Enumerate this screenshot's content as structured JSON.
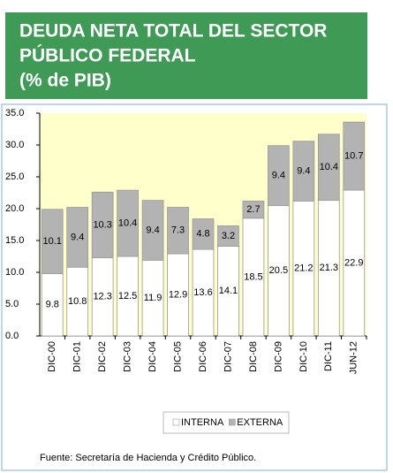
{
  "chart_data": {
    "type": "stacked_bar",
    "title": [
      "DEUDA NETA TOTAL DEL SECTOR",
      "PÚBLICO FEDERAL",
      "(% de PIB)"
    ],
    "categories": [
      "DIC-00",
      "DIC-01",
      "DIC-02",
      "DIC-03",
      "DIC-04",
      "DIC-05",
      "DIC-06",
      "DIC-07",
      "DIC-08",
      "DIC-09",
      "DIC-10",
      "DIC-11",
      "JUN-12"
    ],
    "series": [
      {
        "name": "INTERNA",
        "color": "#ffffff",
        "values": [
          9.8,
          10.8,
          12.3,
          12.5,
          11.9,
          12.9,
          13.6,
          14.1,
          18.5,
          20.5,
          21.2,
          21.3,
          22.9
        ]
      },
      {
        "name": "EXTERNA",
        "color": "#b3b3b3",
        "values": [
          10.1,
          9.4,
          10.3,
          10.4,
          9.4,
          7.3,
          4.8,
          3.2,
          2.7,
          9.4,
          9.4,
          10.4,
          10.7
        ]
      }
    ],
    "ylim": [
      0,
      35
    ],
    "yticks": [
      {
        "value": 0,
        "label": "0.0"
      },
      {
        "value": 5,
        "label": "5.0"
      },
      {
        "value": 10,
        "label": "10.0"
      },
      {
        "value": 15,
        "label": "15.0"
      },
      {
        "value": 20,
        "label": "20.0"
      },
      {
        "value": 25,
        "label": "25.0"
      },
      {
        "value": 30,
        "label": "30.0"
      },
      {
        "value": 35,
        "label": "35.0"
      }
    ],
    "source": "Fuente: Secretaría de Hacienda y Crédito Público."
  }
}
